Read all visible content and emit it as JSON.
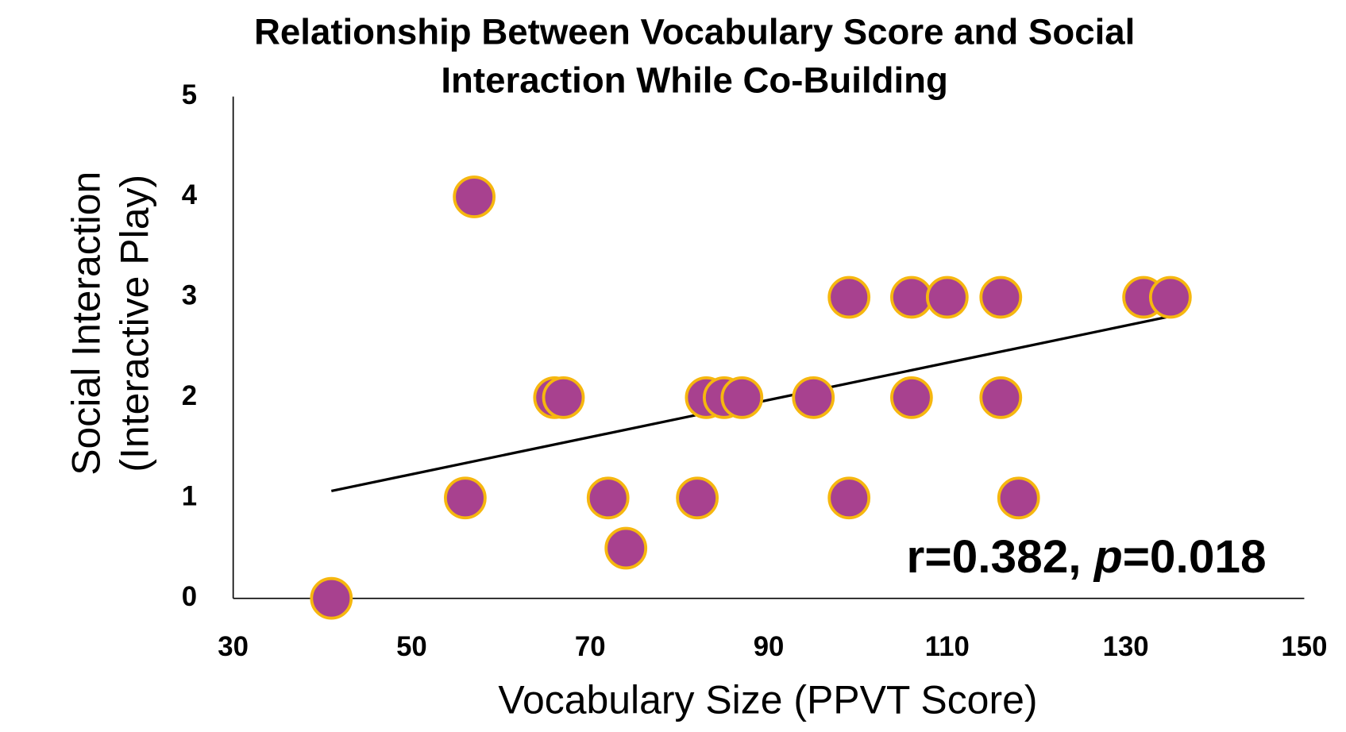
{
  "chart_data": {
    "type": "scatter",
    "title": [
      "Relationship Between Vocabulary Score and Social",
      "Interaction While Co-Building"
    ],
    "x_label": "Vocabulary Size (PPVT Score)",
    "y_label": [
      "Social Interaction",
      "(Interactive Play)"
    ],
    "x": [
      41,
      57,
      56,
      66,
      67,
      72,
      74,
      82,
      83,
      85,
      87,
      95,
      99,
      99,
      106,
      106,
      110,
      116,
      116,
      118,
      132,
      135
    ],
    "values": [
      0,
      4,
      1,
      2,
      2,
      1,
      0.5,
      1,
      2,
      2,
      2,
      2,
      3,
      1,
      3,
      2,
      3,
      3,
      2,
      1,
      3,
      3
    ],
    "color": "#a8418f",
    "edge_color": "#f6b70f",
    "trendline": {
      "x": [
        41,
        135
      ],
      "y": [
        1.07,
        2.81
      ],
      "color": "#000000"
    },
    "annotation": {
      "parts": [
        "r=0.382, ",
        "p",
        "=0.018"
      ],
      "italic": [
        1
      ]
    },
    "xlim": [
      30,
      150
    ],
    "xticks": [
      30,
      50,
      70,
      90,
      110,
      130,
      150
    ],
    "ylim": [
      0,
      5
    ],
    "yticks": [
      0,
      1,
      2,
      3,
      4,
      5
    ],
    "grid": false
  }
}
